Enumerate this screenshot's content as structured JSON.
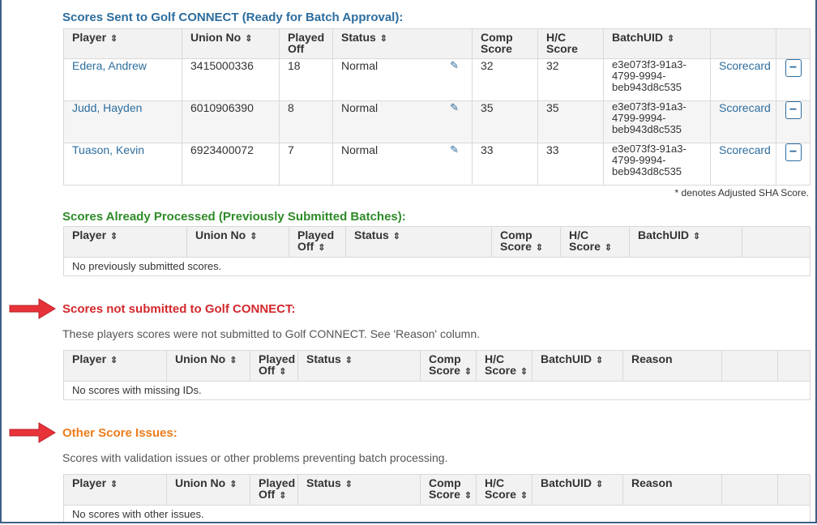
{
  "section1": {
    "title": "Scores Sent to Golf CONNECT (Ready for Batch Approval):",
    "headers": [
      "Player",
      "Union No",
      "Played Off",
      "Status",
      "Comp Score",
      "H/C Score",
      "BatchUID"
    ],
    "rows": [
      {
        "player": "Edera, Andrew",
        "union_no": "3415000336",
        "played_off": "18",
        "status": "Normal",
        "comp": "32",
        "hc": "32",
        "uid": "e3e073f3-91a3-4799-9994-beb943d8c535",
        "scorecard": "Scorecard"
      },
      {
        "player": "Judd, Hayden",
        "union_no": "6010906390",
        "played_off": "8",
        "status": "Normal",
        "comp": "35",
        "hc": "35",
        "uid": "e3e073f3-91a3-4799-9994-beb943d8c535",
        "scorecard": "Scorecard"
      },
      {
        "player": "Tuason, Kevin",
        "union_no": "6923400072",
        "played_off": "7",
        "status": "Normal",
        "comp": "33",
        "hc": "33",
        "uid": "e3e073f3-91a3-4799-9994-beb943d8c535",
        "scorecard": "Scorecard"
      }
    ],
    "note": "* denotes Adjusted SHA Score."
  },
  "section2": {
    "title": "Scores Already Processed (Previously Submitted Batches):",
    "headers": [
      "Player",
      "Union No",
      "Played Off",
      "Status",
      "Comp Score",
      "H/C Score",
      "BatchUID"
    ],
    "empty": "No previously submitted scores."
  },
  "section3": {
    "title": "Scores not submitted to Golf CONNECT:",
    "description": "These players scores were not submitted to Golf CONNECT. See 'Reason' column.",
    "headers": [
      "Player",
      "Union No",
      "Played Off",
      "Status",
      "Comp Score",
      "H/C Score",
      "BatchUID",
      "Reason"
    ],
    "empty": "No scores with missing IDs."
  },
  "section4": {
    "title": "Other Score Issues:",
    "description": "Scores with validation issues or other problems preventing batch processing.",
    "headers": [
      "Player",
      "Union No",
      "Played Off",
      "Status",
      "Comp Score",
      "H/C Score",
      "BatchUID",
      "Reason"
    ],
    "empty": "No scores with other issues."
  },
  "colors": {
    "blue": "#2d6d9e",
    "green": "#2e8b28",
    "red": "#d4282c",
    "orange": "#ec7c1c",
    "arrow": "#e8323a"
  },
  "icons": {
    "sort": "sort-icon",
    "edit": "pencil-icon",
    "remove": "minus-icon",
    "arrow": "red-arrow-icon"
  }
}
